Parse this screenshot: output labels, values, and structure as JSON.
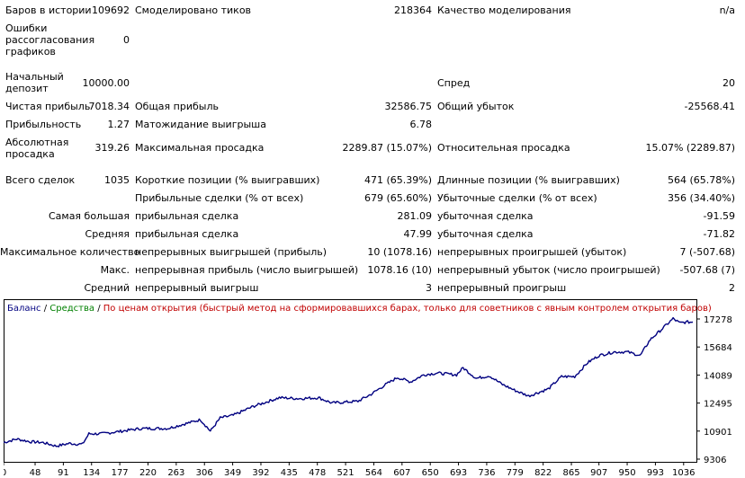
{
  "report": {
    "row1": {
      "bars_label": "Баров в истории",
      "bars_value": "109692",
      "ticks_label": "Смоделировано тиков",
      "ticks_value": "218364",
      "quality_label": "Качество моделирования",
      "quality_value": "n/a"
    },
    "row2": {
      "mismatch_label": "Ошибки рассогласования графиков",
      "mismatch_value": "0"
    },
    "row3": {
      "deposit_label": "Начальный депозит",
      "deposit_value": "10000.00",
      "spread_label": "Спред",
      "spread_value": "20"
    },
    "row4": {
      "net_profit_label": "Чистая прибыль",
      "net_profit_value": "7018.34",
      "gross_profit_label": "Общая прибыль",
      "gross_profit_value": "32586.75",
      "gross_loss_label": "Общий убыток",
      "gross_loss_value": "-25568.41"
    },
    "row5": {
      "profit_factor_label": "Прибыльность",
      "profit_factor_value": "1.27",
      "expected_payoff_label": "Матожидание выигрыша",
      "expected_payoff_value": "6.78"
    },
    "row6": {
      "abs_dd_label": "Абсолютная просадка",
      "abs_dd_value": "319.26",
      "max_dd_label": "Максимальная просадка",
      "max_dd_value": "2289.87 (15.07%)",
      "rel_dd_label": "Относительная просадка",
      "rel_dd_value": "15.07% (2289.87)"
    },
    "row7": {
      "total_trades_label": "Всего сделок",
      "total_trades_value": "1035",
      "short_label": "Короткие позиции (% выигравших)",
      "short_value": "471 (65.39%)",
      "long_label": "Длинные позиции (% выигравших)",
      "long_value": "564 (65.78%)"
    },
    "row8": {
      "profit_trades_label": "Прибыльные сделки (% от всех)",
      "profit_trades_value": "679 (65.60%)",
      "loss_trades_label": "Убыточные сделки (% от всех)",
      "loss_trades_value": "356 (34.40%)"
    },
    "row9": {
      "largest_label": "Самая большая",
      "largest_profit_label": "прибыльная сделка",
      "largest_profit_value": "281.09",
      "largest_loss_label": "убыточная сделка",
      "largest_loss_value": "-91.59"
    },
    "row10": {
      "average_label": "Средняя",
      "average_profit_label": "прибыльная сделка",
      "average_profit_value": "47.99",
      "average_loss_label": "убыточная сделка",
      "average_loss_value": "-71.82"
    },
    "row11": {
      "max_count_label": "Максимальное количество",
      "max_wins_label": "непрерывных выигрышей (прибыль)",
      "max_wins_value": "10 (1078.16)",
      "max_losses_label": "непрерывных проигрышей (убыток)",
      "max_losses_value": "7 (-507.68)"
    },
    "row12": {
      "max_label": "Макс.",
      "max_profit_label": "непрерывная прибыль (число выигрышей)",
      "max_profit_value": "1078.16 (10)",
      "max_loss_label": "непрерывный убыток (число проигрышей)",
      "max_loss_value": "-507.68 (7)"
    },
    "row13": {
      "avg_label": "Средний",
      "avg_wins_label": "непрерывный выигрыш",
      "avg_wins_value": "3",
      "avg_losses_label": "непрерывный проигрыш",
      "avg_losses_value": "2"
    }
  },
  "chart": {
    "legend_balance": "Баланс",
    "legend_sep1": " / ",
    "legend_equity": "Средства",
    "legend_sep2": " / ",
    "legend_method": "По ценам открытия (быстрый метод на сформировавшихся барах, только для советников с явным контролем открытия баров)",
    "colors": {
      "balance": "#000080",
      "equity": "#008000",
      "method": "#c00000",
      "frame": "#000000"
    }
  },
  "chart_data": {
    "type": "line",
    "xlabel": "",
    "ylabel": "",
    "x_ticks": [
      0,
      48,
      91,
      134,
      177,
      220,
      263,
      306,
      349,
      392,
      435,
      478,
      521,
      564,
      607,
      650,
      693,
      736,
      779,
      822,
      865,
      907,
      950,
      993,
      1036
    ],
    "y_ticks": [
      9306,
      10901,
      12495,
      14089,
      15684,
      17278
    ],
    "xlim": [
      0,
      1050
    ],
    "ylim": [
      9306,
      17278
    ],
    "grid": false,
    "series": [
      {
        "name": "Баланс",
        "x": [
          0,
          20,
          40,
          60,
          80,
          100,
          120,
          130,
          150,
          180,
          210,
          250,
          280,
          300,
          315,
          330,
          350,
          380,
          420,
          450,
          480,
          500,
          521,
          540,
          560,
          580,
          600,
          620,
          640,
          660,
          690,
          700,
          720,
          740,
          760,
          780,
          800,
          815,
          830,
          850,
          870,
          890,
          907,
          930,
          950,
          970,
          985,
          1000,
          1020,
          1030,
          1040,
          1050
        ],
        "y": [
          10250,
          10450,
          10300,
          10250,
          10050,
          10200,
          10150,
          10750,
          10750,
          10900,
          11050,
          11050,
          11350,
          11550,
          10900,
          11650,
          11800,
          12300,
          12800,
          12750,
          12800,
          12500,
          12550,
          12600,
          13000,
          13500,
          13950,
          13700,
          14100,
          14200,
          14100,
          14500,
          13900,
          14050,
          13550,
          13200,
          12900,
          13100,
          13300,
          14000,
          14000,
          14800,
          15200,
          15400,
          15400,
          15200,
          16100,
          16600,
          17300,
          17050,
          17100,
          17100
        ]
      }
    ]
  }
}
